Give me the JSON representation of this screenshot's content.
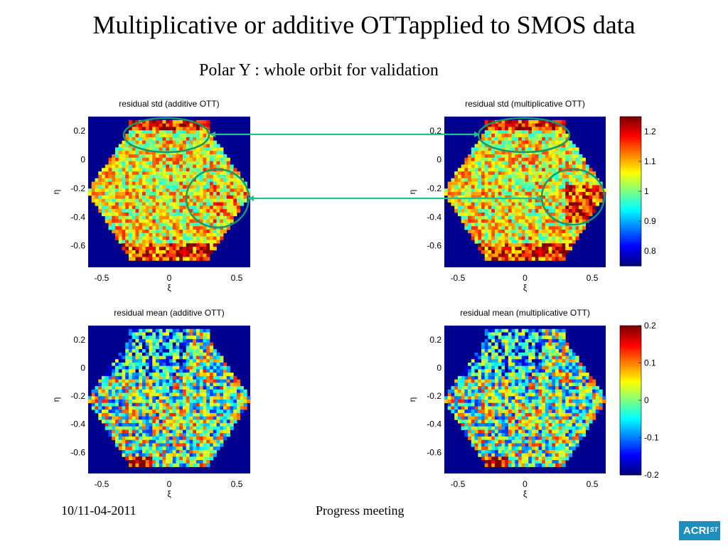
{
  "slide": {
    "title": "Multiplicative or additive OTTapplied to SMOS data",
    "subtitle": "Polar Y : whole orbit for validation",
    "footer_date": "10/11-04-2011",
    "footer_center": "Progress meeting",
    "logo_text": "ACRI",
    "logo_sub": "ST",
    "logo_color": "#1c8ec0",
    "arrow_color": "#20c090"
  },
  "chart_data": [
    {
      "type": "heatmap",
      "title": "residual std (additive OTT)",
      "xlabel": "ξ",
      "ylabel": "η",
      "xticks": [
        "-0.5",
        "0",
        "0.5"
      ],
      "yticks": [
        "0.2",
        "0",
        "-0.2",
        "-0.4",
        "-0.6"
      ],
      "xlim": [
        -0.6,
        0.6
      ],
      "ylim": [
        -0.75,
        0.3
      ],
      "clim": [
        0.75,
        1.25
      ],
      "colormap": "jet",
      "field": "std"
    },
    {
      "type": "heatmap",
      "title": "residual std (multiplicative OTT)",
      "xlabel": "ξ",
      "ylabel": "η",
      "xticks": [
        "-0.5",
        "0",
        "0.5"
      ],
      "yticks": [
        "0.2",
        "0",
        "-0.2",
        "-0.4",
        "-0.6"
      ],
      "xlim": [
        -0.6,
        0.6
      ],
      "ylim": [
        -0.75,
        0.3
      ],
      "clim": [
        0.75,
        1.25
      ],
      "colormap": "jet",
      "field": "std",
      "colorbar_ticks": [
        "1.2",
        "1.1",
        "1",
        "0.9",
        "0.8"
      ]
    },
    {
      "type": "heatmap",
      "title": "residual mean (additive OTT)",
      "xlabel": "ξ",
      "ylabel": "η",
      "xticks": [
        "-0.5",
        "0",
        "0.5"
      ],
      "yticks": [
        "0.2",
        "0",
        "-0.2",
        "-0.4",
        "-0.6"
      ],
      "xlim": [
        -0.6,
        0.6
      ],
      "ylim": [
        -0.75,
        0.3
      ],
      "clim": [
        -0.2,
        0.2
      ],
      "colormap": "jet",
      "field": "mean"
    },
    {
      "type": "heatmap",
      "title": "residual mean (multiplicative OTT)",
      "xlabel": "ξ",
      "ylabel": "η",
      "xticks": [
        "-0.5",
        "0",
        "0.5"
      ],
      "yticks": [
        "0.2",
        "0",
        "-0.2",
        "-0.4",
        "-0.6"
      ],
      "xlim": [
        -0.6,
        0.6
      ],
      "ylim": [
        -0.75,
        0.3
      ],
      "clim": [
        -0.2,
        0.2
      ],
      "colormap": "jet",
      "field": "mean",
      "colorbar_ticks": [
        "0.2",
        "0.1",
        "0",
        "-0.1",
        "-0.2"
      ]
    }
  ]
}
